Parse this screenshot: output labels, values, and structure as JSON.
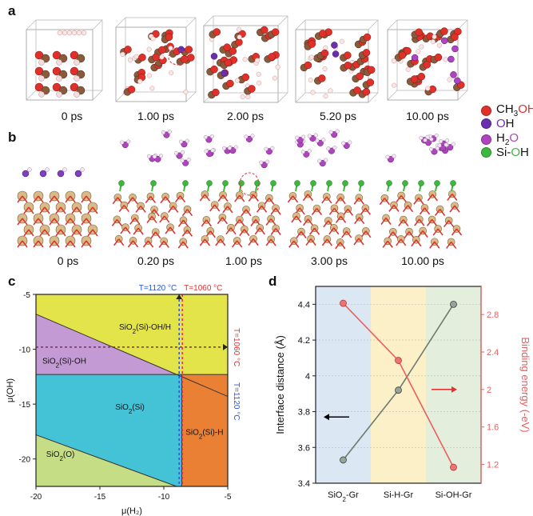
{
  "panels": {
    "a": "a",
    "b": "b",
    "c": "c",
    "d": "d"
  },
  "panel_a": {
    "times": [
      "0 ps",
      "1.00 ps",
      "2.00 ps",
      "5.20 ps",
      "10.00 ps"
    ]
  },
  "panel_b": {
    "times": [
      "0 ps",
      "0.20 ps",
      "1.00 ps",
      "3.00 ps",
      "10.00 ps"
    ]
  },
  "legend": {
    "ch3oh": {
      "pre": "CH",
      "sub": "3",
      "o": "O",
      "h": "H",
      "color": "#e0302a"
    },
    "oh": {
      "o": "O",
      "h": "H",
      "color": "#6a2fb0"
    },
    "h2o": {
      "h": "H",
      "sub": "2",
      "o": "O",
      "color": "#b044c0"
    },
    "sioh": {
      "pre": "Si-",
      "o": "O",
      "h": "H",
      "color": "#3cb83c"
    }
  },
  "chart_data": [
    {
      "type": "phase-diagram",
      "panel": "c",
      "xlabel": "μ(H₂)",
      "ylabel": "μ(OH)",
      "xlim": [
        -20,
        -5
      ],
      "ylim": [
        -22.5,
        -5
      ],
      "xticks": [
        "-20",
        "-15",
        "-10",
        "-5"
      ],
      "yticks": [
        "-5",
        "-10",
        "-15",
        "-20"
      ],
      "regions": [
        {
          "name": "SiO2(Si)-OH/H",
          "label_pre": "SiO",
          "label_sub": "2",
          "label_post": "(Si)-OH/H",
          "color": "#e3e34a"
        },
        {
          "name": "SiO2(Si)-OH",
          "label_pre": "SiO",
          "label_sub": "2",
          "label_post": "(Si)-OH",
          "color": "#c39ad3"
        },
        {
          "name": "SiO2(Si)",
          "label_pre": "SiO",
          "label_sub": "2",
          "label_post": "(Si)",
          "color": "#45c3d6"
        },
        {
          "name": "SiO2(Si)-H",
          "label_pre": "SiO",
          "label_sub": "2",
          "label_post": "(Si)-H",
          "color": "#ea8034"
        },
        {
          "name": "SiO2(O)",
          "label_pre": "SiO",
          "label_sub": "2",
          "label_post": "(O)",
          "color": "#c5de86"
        }
      ],
      "boundaries": {
        "oh_upper_line": {
          "x1": -20,
          "y1": -6.8,
          "x2": -5,
          "y2": -14.3
        },
        "oh_lower_line": {
          "x1": -20,
          "y1": -12.3,
          "x2": -8.6,
          "y2": -12.3
        },
        "o_line": {
          "x1": -20,
          "y1": -17.8,
          "x2": -9.0,
          "y2": -22.5
        },
        "h_line_x": -8.6
      },
      "markers": {
        "blue_label": "T=1120 °C",
        "blue_color": "#2b55d8",
        "blue_x": -8.8,
        "red_label": "T=1060 °C",
        "red_color": "#e23434",
        "red_x": -8.55,
        "red_y": -9.8,
        "red_side_label": "T=1060 °C",
        "blue_side_label": "T=1120 °C"
      }
    },
    {
      "type": "line",
      "panel": "d",
      "categories": [
        "SiO2-Gr",
        "Si-H-Gr",
        "Si-OH-Gr"
      ],
      "category_labels": [
        {
          "pre": "SiO",
          "sub": "2",
          "post": "-Gr"
        },
        {
          "pre": "Si-H-Gr",
          "sub": "",
          "post": ""
        },
        {
          "pre": "Si-OH-Gr",
          "sub": "",
          "post": ""
        }
      ],
      "band_colors": [
        "#dbe7f3",
        "#fcf0c9",
        "#e3efdc"
      ],
      "series": [
        {
          "name": "Interface distance",
          "axis": "left",
          "color": "#6d7a6d",
          "values": [
            3.53,
            3.92,
            4.4
          ]
        },
        {
          "name": "Binding energy",
          "axis": "right",
          "color": "#ec5e5e",
          "values": [
            2.92,
            2.31,
            1.17
          ]
        }
      ],
      "ylabel_left": "Interface distance (Å)",
      "ylabel_right": "Binding energy (-eV)",
      "ylim_left": [
        3.4,
        4.5
      ],
      "ylim_right": [
        1.0,
        3.1
      ],
      "yticks_left": [
        "3.4",
        "3.6",
        "3.8",
        "4",
        "4.2",
        "4.4"
      ],
      "yticks_right": [
        "1.2",
        "1.6",
        "2",
        "2.4",
        "2.8"
      ]
    }
  ]
}
